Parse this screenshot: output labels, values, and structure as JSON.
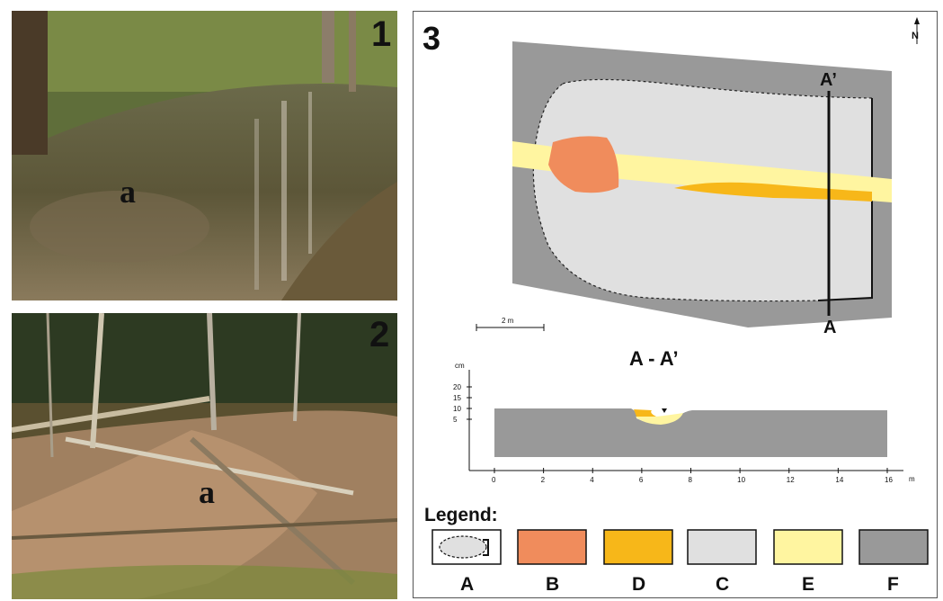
{
  "photo1": {
    "number": "1",
    "label": "a"
  },
  "photo2": {
    "number": "2",
    "label": "a"
  },
  "panel3": {
    "number": "3",
    "north": "N",
    "section_top": "A’",
    "section_bottom": "A",
    "scale_bar": "2 m",
    "profile_title": "A - A’",
    "y_unit": "cm",
    "y_ticks": [
      "20",
      "15",
      "10",
      "5"
    ],
    "x_ticks": [
      "0",
      "2",
      "4",
      "6",
      "8",
      "10",
      "12",
      "14",
      "16"
    ],
    "x_unit": "m"
  },
  "legend": {
    "title": "Legend:",
    "items": [
      {
        "key": "A",
        "color": "#e0e0e0"
      },
      {
        "key": "B",
        "color": "#f08c5c"
      },
      {
        "key": "D",
        "color": "#f7b719"
      },
      {
        "key": "C",
        "color": "#e0e0e0"
      },
      {
        "key": "E",
        "color": "#fff5a0"
      },
      {
        "key": "F",
        "color": "#999999"
      }
    ]
  }
}
